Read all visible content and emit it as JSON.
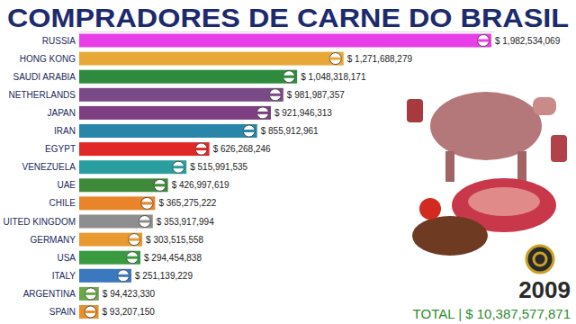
{
  "chart_data": {
    "type": "bar",
    "title": "COMPRADORES DE CARNE DO BRASIL",
    "orientation": "horizontal",
    "categories": [
      "RUSSIA",
      "HONG KONG",
      "SAUDI ARABIA",
      "NETHERLANDS",
      "JAPAN",
      "IRAN",
      "EGYPT",
      "VENEZUELA",
      "UAE",
      "CHILE",
      "UITED KINGDOM",
      "GERMANY",
      "USA",
      "ITALY",
      "ARGENTINA",
      "SPAIN"
    ],
    "values": [
      1982534069,
      1271688279,
      1048318171,
      981987357,
      921946313,
      855912961,
      626268246,
      515991535,
      426997619,
      365275222,
      353917994,
      303515558,
      294454838,
      251139229,
      94423330,
      93207150
    ],
    "value_labels": [
      "$ 1,982,534,069",
      "$ 1,271,688,279",
      "$ 1,048,318,171",
      "$ 981,987,357",
      "$ 921,946,313",
      "$ 855,912,961",
      "$ 626,268,246",
      "$ 515,991,535",
      "$ 426,997,619",
      "$ 365,275,222",
      "$ 353,917,994",
      "$ 303,515,558",
      "$ 294,454,838",
      "$ 251,139,229",
      "$ 94,423,330",
      "$ 93,207,150"
    ],
    "colors": [
      "#e83ee8",
      "#e8a838",
      "#2e8b3e",
      "#7a4a86",
      "#7e3f82",
      "#2a86a8",
      "#e02828",
      "#2a9e9e",
      "#3f8a3a",
      "#e8842a",
      "#8e8e8e",
      "#e89a30",
      "#3a9a40",
      "#3a78c0",
      "#6aa84a",
      "#e8902a"
    ],
    "xlim": [
      0,
      2000000000
    ],
    "data_labels": true,
    "tick_labels": false,
    "annotations": [
      "2009",
      "TOTAL | $ 10,387,577,871"
    ]
  }
}
